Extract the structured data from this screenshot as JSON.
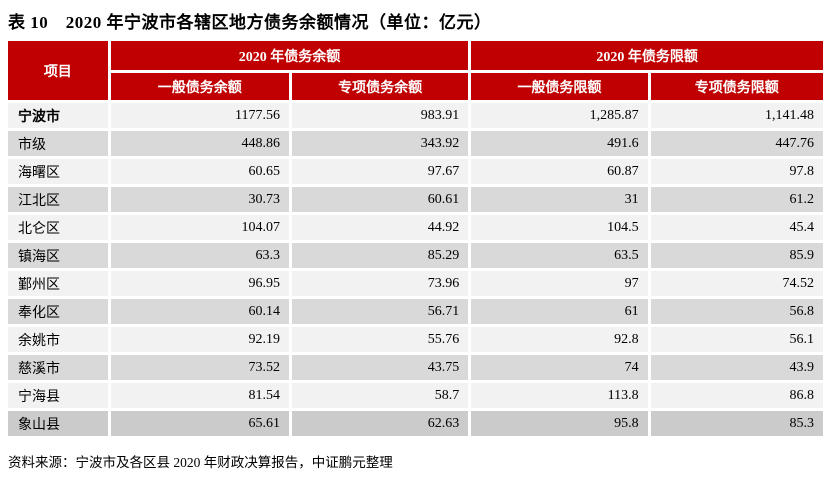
{
  "title": "表 10　2020 年宁波市各辖区地方债务余额情况（单位：亿元）",
  "colors": {
    "header_red": "#C00000",
    "header_text": "#FFFFFF",
    "row_light": "#F2F2F2",
    "row_gray": "#D9D9D9",
    "row_dark": "#CBCBCB"
  },
  "table": {
    "project_header": "项目",
    "group_headers": [
      "2020 年债务余额",
      "2020 年债务限额"
    ],
    "sub_headers": [
      "一般债务余额",
      "专项债务余额",
      "一般债务限额",
      "专项债务限额"
    ],
    "rows": [
      {
        "name": "宁波市",
        "bold": true,
        "values": [
          "1177.56",
          "983.91",
          "1,285.87",
          "1,141.48"
        ]
      },
      {
        "name": "市级",
        "bold": false,
        "values": [
          "448.86",
          "343.92",
          "491.6",
          "447.76"
        ]
      },
      {
        "name": "海曙区",
        "bold": false,
        "values": [
          "60.65",
          "97.67",
          "60.87",
          "97.8"
        ]
      },
      {
        "name": "江北区",
        "bold": false,
        "values": [
          "30.73",
          "60.61",
          "31",
          "61.2"
        ]
      },
      {
        "name": "北仑区",
        "bold": false,
        "values": [
          "104.07",
          "44.92",
          "104.5",
          "45.4"
        ]
      },
      {
        "name": "镇海区",
        "bold": false,
        "values": [
          "63.3",
          "85.29",
          "63.5",
          "85.9"
        ]
      },
      {
        "name": "鄞州区",
        "bold": false,
        "values": [
          "96.95",
          "73.96",
          "97",
          "74.52"
        ]
      },
      {
        "name": "奉化区",
        "bold": false,
        "values": [
          "60.14",
          "56.71",
          "61",
          "56.8"
        ]
      },
      {
        "name": "余姚市",
        "bold": false,
        "values": [
          "92.19",
          "55.76",
          "92.8",
          "56.1"
        ]
      },
      {
        "name": "慈溪市",
        "bold": false,
        "values": [
          "73.52",
          "43.75",
          "74",
          "43.9"
        ]
      },
      {
        "name": "宁海县",
        "bold": false,
        "values": [
          "81.54",
          "58.7",
          "113.8",
          "86.8"
        ]
      },
      {
        "name": "象山县",
        "bold": false,
        "values": [
          "65.61",
          "62.63",
          "95.8",
          "85.3"
        ]
      }
    ]
  },
  "source_note": "资料来源：宁波市及各区县 2020 年财政决算报告，中证鹏元整理"
}
